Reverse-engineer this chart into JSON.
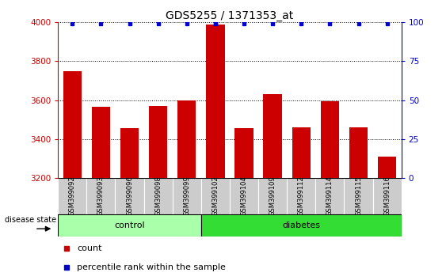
{
  "title": "GDS5255 / 1371353_at",
  "samples": [
    "GSM399092",
    "GSM399093",
    "GSM399096",
    "GSM399098",
    "GSM399099",
    "GSM399102",
    "GSM399104",
    "GSM399109",
    "GSM399112",
    "GSM399114",
    "GSM399115",
    "GSM399116"
  ],
  "counts": [
    3750,
    3565,
    3455,
    3570,
    3600,
    3990,
    3455,
    3630,
    3460,
    3595,
    3460,
    3310
  ],
  "percentile_values": [
    99,
    99,
    99,
    99,
    99,
    99,
    99,
    99,
    99,
    99,
    99,
    99
  ],
  "pct_special": {
    "index": 5,
    "value": 100
  },
  "groups": [
    {
      "name": "control",
      "indices": [
        0,
        1,
        2,
        3,
        4
      ],
      "color": "#AAFFAA"
    },
    {
      "name": "diabetes",
      "indices": [
        5,
        6,
        7,
        8,
        9,
        10,
        11
      ],
      "color": "#33DD33"
    }
  ],
  "ylim_left": [
    3200,
    4000
  ],
  "ylim_right": [
    0,
    100
  ],
  "yticks_left": [
    3200,
    3400,
    3600,
    3800,
    4000
  ],
  "yticks_right": [
    0,
    25,
    50,
    75,
    100
  ],
  "bar_color": "#CC0000",
  "dot_color": "#0000CC",
  "bar_width": 0.65,
  "sample_bg_color": "#CCCCCC",
  "plot_bg": "#FFFFFF",
  "grid_color": "#000000",
  "left_tick_color": "#CC0000",
  "right_tick_color": "#0000CC",
  "title_fontsize": 10,
  "tick_fontsize": 7.5,
  "sample_fontsize": 6,
  "group_fontsize": 8,
  "legend_fontsize": 8
}
